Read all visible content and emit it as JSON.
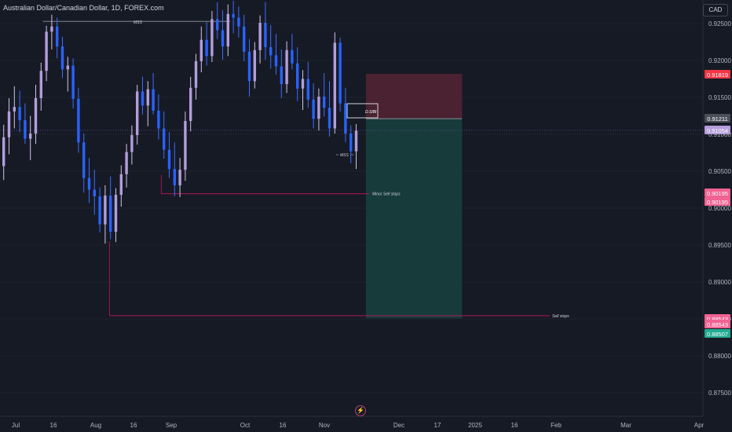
{
  "header": {
    "title": "Australian Dollar/Canadian Dollar, 1D, FOREX.com",
    "currency": "CAD"
  },
  "colors": {
    "up": "#b39ddb",
    "down": "#2962ff",
    "wick_up": "#d1c4e9",
    "wick_down": "#3d6dff",
    "stop_zone": "#4a2232",
    "target_zone": "#163b3a",
    "level_line": "#c2185b",
    "grid": "#1e222d",
    "axis_text": "#b2b5be"
  },
  "chart_data": {
    "type": "candlestick",
    "symbol": "AUDCAD",
    "timeframe": "1D",
    "y_axis": {
      "ticks": [
        "0.92500",
        "0.92000",
        "0.91500",
        "0.91000",
        "0.90500",
        "0.90000",
        "0.89500",
        "0.89000",
        "0.88500",
        "0.88000",
        "0.87500"
      ],
      "tick_values": [
        0.925,
        0.92,
        0.915,
        0.91,
        0.905,
        0.9,
        0.895,
        0.89,
        0.885,
        0.88,
        0.875
      ]
    },
    "x_axis": {
      "ticks": [
        "Jul",
        "16",
        "Aug",
        "16",
        "Sep",
        "Oct",
        "16",
        "Nov",
        "Dec",
        "17",
        "2025",
        "16",
        "Feb",
        "Mar",
        "Apr"
      ]
    },
    "price_labels": [
      {
        "text": "0.91819",
        "value": 0.91819,
        "color": "#f23645"
      },
      {
        "text": "0.91211",
        "value": 0.91211,
        "color": "#4a4e59"
      },
      {
        "text": "0.91054",
        "value": 0.91054,
        "color": "#b39ddb"
      },
      {
        "text": "0.90195",
        "value": 0.90195,
        "color": "#f06292"
      },
      {
        "text": "0.90195",
        "value": 0.90195,
        "color": "#f06292"
      },
      {
        "text": "0.88543",
        "value": 0.88543,
        "color": "#f06292"
      },
      {
        "text": "0.88543",
        "value": 0.88543,
        "color": "#f06292"
      },
      {
        "text": "0.88507",
        "value": 0.88507,
        "color": "#22ab94"
      }
    ],
    "annotations": [
      "MSS",
      "D.SIBI",
      "MSS",
      "Minor Sell stops",
      "Sell stops"
    ],
    "position": {
      "type": "short",
      "entry": 0.91211,
      "stop": 0.91819,
      "target": 0.88507,
      "start": "2024-11-20",
      "end": "2024-12-29"
    },
    "levels": [
      {
        "label": "MSS",
        "value": 0.9253,
        "from": "2024-07-12",
        "to": "2024-09-26"
      },
      {
        "label": "Minor Sell stops",
        "value": 0.90195,
        "from": "2024-08-29",
        "to": "2024-11-21"
      },
      {
        "label": "Sell stops",
        "value": 0.88543,
        "from": "2024-08-08",
        "to": "2025-01-31"
      }
    ],
    "candles": [
      {
        "o": 0.9057,
        "h": 0.9113,
        "l": 0.9038,
        "c": 0.9096
      },
      {
        "o": 0.9096,
        "h": 0.9149,
        "l": 0.9073,
        "c": 0.9131
      },
      {
        "o": 0.9131,
        "h": 0.9165,
        "l": 0.9108,
        "c": 0.9137
      },
      {
        "o": 0.9137,
        "h": 0.9159,
        "l": 0.9103,
        "c": 0.9119
      },
      {
        "o": 0.9119,
        "h": 0.9142,
        "l": 0.9087,
        "c": 0.9094
      },
      {
        "o": 0.9094,
        "h": 0.9125,
        "l": 0.9065,
        "c": 0.9101
      },
      {
        "o": 0.9101,
        "h": 0.9167,
        "l": 0.9087,
        "c": 0.9149
      },
      {
        "o": 0.9149,
        "h": 0.9197,
        "l": 0.9132,
        "c": 0.9186
      },
      {
        "o": 0.9186,
        "h": 0.9247,
        "l": 0.9172,
        "c": 0.9239
      },
      {
        "o": 0.9239,
        "h": 0.9262,
        "l": 0.9215,
        "c": 0.9246
      },
      {
        "o": 0.9246,
        "h": 0.9258,
        "l": 0.9203,
        "c": 0.9219
      },
      {
        "o": 0.9219,
        "h": 0.9232,
        "l": 0.9176,
        "c": 0.9188
      },
      {
        "o": 0.9188,
        "h": 0.9205,
        "l": 0.9158,
        "c": 0.9193
      },
      {
        "o": 0.9193,
        "h": 0.9203,
        "l": 0.9135,
        "c": 0.9148
      },
      {
        "o": 0.9148,
        "h": 0.9163,
        "l": 0.9075,
        "c": 0.9089
      },
      {
        "o": 0.9089,
        "h": 0.9101,
        "l": 0.9021,
        "c": 0.9041
      },
      {
        "o": 0.9041,
        "h": 0.9068,
        "l": 0.9007,
        "c": 0.9025
      },
      {
        "o": 0.9025,
        "h": 0.9052,
        "l": 0.8991,
        "c": 0.9016
      },
      {
        "o": 0.9016,
        "h": 0.9028,
        "l": 0.8967,
        "c": 0.8978
      },
      {
        "o": 0.8978,
        "h": 0.9031,
        "l": 0.8952,
        "c": 0.9017
      },
      {
        "o": 0.9017,
        "h": 0.9043,
        "l": 0.8958,
        "c": 0.8968
      },
      {
        "o": 0.8968,
        "h": 0.9027,
        "l": 0.8954,
        "c": 0.9018
      },
      {
        "o": 0.9018,
        "h": 0.9058,
        "l": 0.9002,
        "c": 0.9046
      },
      {
        "o": 0.9046,
        "h": 0.9087,
        "l": 0.9028,
        "c": 0.9076
      },
      {
        "o": 0.9076,
        "h": 0.9112,
        "l": 0.9059,
        "c": 0.9099
      },
      {
        "o": 0.9099,
        "h": 0.9167,
        "l": 0.9086,
        "c": 0.9158
      },
      {
        "o": 0.9158,
        "h": 0.9178,
        "l": 0.9127,
        "c": 0.9139
      },
      {
        "o": 0.9139,
        "h": 0.9172,
        "l": 0.9111,
        "c": 0.9161
      },
      {
        "o": 0.9161,
        "h": 0.9183,
        "l": 0.9127,
        "c": 0.9132
      },
      {
        "o": 0.9132,
        "h": 0.9154,
        "l": 0.9093,
        "c": 0.9108
      },
      {
        "o": 0.9108,
        "h": 0.9131,
        "l": 0.9067,
        "c": 0.9079
      },
      {
        "o": 0.9079,
        "h": 0.9103,
        "l": 0.9041,
        "c": 0.9053
      },
      {
        "o": 0.9053,
        "h": 0.9089,
        "l": 0.9016,
        "c": 0.9031
      },
      {
        "o": 0.9031,
        "h": 0.9068,
        "l": 0.9015,
        "c": 0.9052
      },
      {
        "o": 0.9052,
        "h": 0.9131,
        "l": 0.9037,
        "c": 0.9118
      },
      {
        "o": 0.9118,
        "h": 0.9178,
        "l": 0.9104,
        "c": 0.9163
      },
      {
        "o": 0.9163,
        "h": 0.9209,
        "l": 0.9147,
        "c": 0.9199
      },
      {
        "o": 0.9199,
        "h": 0.9246,
        "l": 0.9184,
        "c": 0.9228
      },
      {
        "o": 0.9228,
        "h": 0.9252,
        "l": 0.9193,
        "c": 0.9206
      },
      {
        "o": 0.9206,
        "h": 0.9267,
        "l": 0.9198,
        "c": 0.9256
      },
      {
        "o": 0.9256,
        "h": 0.9279,
        "l": 0.9229,
        "c": 0.9241
      },
      {
        "o": 0.9241,
        "h": 0.9268,
        "l": 0.9201,
        "c": 0.9219
      },
      {
        "o": 0.9219,
        "h": 0.9276,
        "l": 0.9206,
        "c": 0.9263
      },
      {
        "o": 0.9263,
        "h": 0.9281,
        "l": 0.9237,
        "c": 0.9258
      },
      {
        "o": 0.9258,
        "h": 0.9273,
        "l": 0.9231,
        "c": 0.9246
      },
      {
        "o": 0.9246,
        "h": 0.9262,
        "l": 0.9199,
        "c": 0.9212
      },
      {
        "o": 0.9212,
        "h": 0.9229,
        "l": 0.9151,
        "c": 0.9172
      },
      {
        "o": 0.9172,
        "h": 0.9225,
        "l": 0.9162,
        "c": 0.9214
      },
      {
        "o": 0.9214,
        "h": 0.9261,
        "l": 0.9196,
        "c": 0.9251
      },
      {
        "o": 0.9251,
        "h": 0.9279,
        "l": 0.9201,
        "c": 0.9218
      },
      {
        "o": 0.9218,
        "h": 0.9248,
        "l": 0.9189,
        "c": 0.9207
      },
      {
        "o": 0.9207,
        "h": 0.9236,
        "l": 0.9181,
        "c": 0.9192
      },
      {
        "o": 0.9192,
        "h": 0.9215,
        "l": 0.9149,
        "c": 0.9168
      },
      {
        "o": 0.9168,
        "h": 0.9226,
        "l": 0.9156,
        "c": 0.9214
      },
      {
        "o": 0.9214,
        "h": 0.9236,
        "l": 0.9188,
        "c": 0.9196
      },
      {
        "o": 0.9196,
        "h": 0.9218,
        "l": 0.9145,
        "c": 0.9162
      },
      {
        "o": 0.9162,
        "h": 0.9187,
        "l": 0.9133,
        "c": 0.9175
      },
      {
        "o": 0.9175,
        "h": 0.9198,
        "l": 0.9136,
        "c": 0.9147
      },
      {
        "o": 0.9147,
        "h": 0.9169,
        "l": 0.9108,
        "c": 0.9121
      },
      {
        "o": 0.9121,
        "h": 0.9162,
        "l": 0.9105,
        "c": 0.9151
      },
      {
        "o": 0.9151,
        "h": 0.9183,
        "l": 0.9124,
        "c": 0.9136
      },
      {
        "o": 0.9136,
        "h": 0.9172,
        "l": 0.9097,
        "c": 0.9108
      },
      {
        "o": 0.9108,
        "h": 0.9238,
        "l": 0.9101,
        "c": 0.9224
      },
      {
        "o": 0.9224,
        "h": 0.9231,
        "l": 0.9131,
        "c": 0.9142
      },
      {
        "o": 0.9142,
        "h": 0.9163,
        "l": 0.9089,
        "c": 0.9101
      },
      {
        "o": 0.9101,
        "h": 0.9112,
        "l": 0.9061,
        "c": 0.9077
      },
      {
        "o": 0.9077,
        "h": 0.9114,
        "l": 0.9053,
        "c": 0.9105
      }
    ]
  }
}
